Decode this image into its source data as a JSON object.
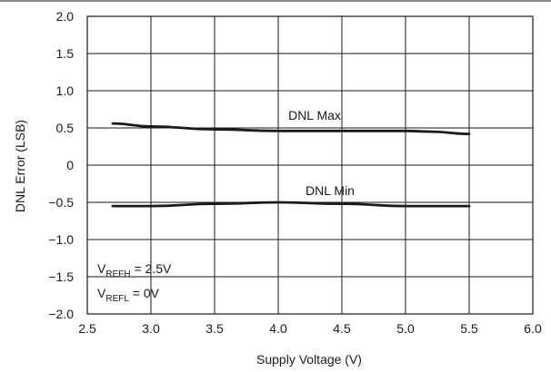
{
  "chart_data": {
    "type": "line",
    "xlabel": "Supply Voltage (V)",
    "ylabel": "DNL Error (LSB)",
    "xlim": [
      2.5,
      6.0
    ],
    "ylim": [
      -2.0,
      2.0
    ],
    "x_ticks": [
      2.5,
      3.0,
      3.5,
      4.0,
      4.5,
      5.0,
      5.5,
      6.0
    ],
    "y_ticks": [
      -2.0,
      -1.5,
      -1.0,
      -0.5,
      0,
      0.5,
      1.0,
      1.5,
      2.0
    ],
    "x_tick_labels": [
      "2.5",
      "3.0",
      "3.5",
      "4.0",
      "4.5",
      "5.0",
      "5.5",
      "6.0"
    ],
    "y_tick_labels": [
      "−2.0",
      "−1.5",
      "−1.0",
      "−0.5",
      "0",
      "0.5",
      "1.0",
      "1.5",
      "2.0"
    ],
    "grid": true,
    "series": [
      {
        "name": "DNL Max",
        "x": [
          2.7,
          3.0,
          3.5,
          4.0,
          4.5,
          5.0,
          5.2,
          5.5
        ],
        "y": [
          0.56,
          0.52,
          0.48,
          0.46,
          0.46,
          0.46,
          0.45,
          0.42
        ]
      },
      {
        "name": "DNL Min",
        "x": [
          2.7,
          3.0,
          3.5,
          4.0,
          4.5,
          5.0,
          5.5
        ],
        "y": [
          -0.55,
          -0.55,
          -0.52,
          -0.5,
          -0.52,
          -0.55,
          -0.55
        ]
      }
    ],
    "annotations": {
      "vrefh": {
        "prefix": "V",
        "sub": "REFH",
        "text": " = 2.5V"
      },
      "vrefl": {
        "prefix": "V",
        "sub": "REFL",
        "text": " = 0V"
      }
    },
    "colors": {
      "line": "#1a1a1a",
      "grid": "#1a1a1a"
    }
  }
}
